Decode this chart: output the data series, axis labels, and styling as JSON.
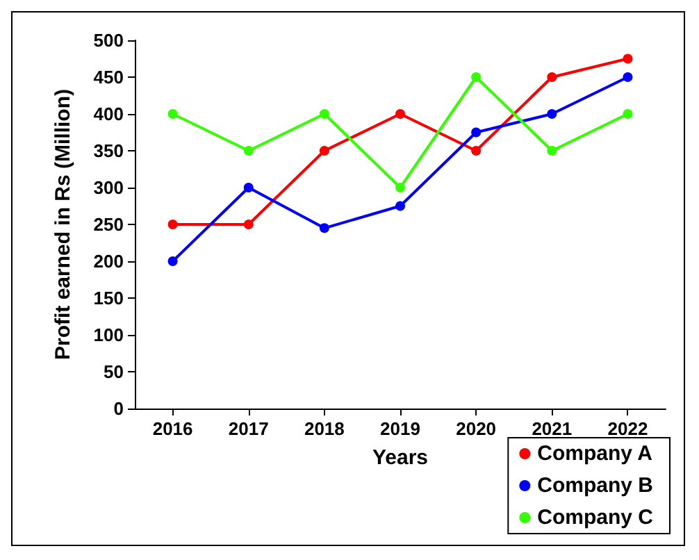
{
  "chart_data": {
    "type": "line",
    "xlabel": "Years",
    "ylabel": "Profit earned in Rs (Million)",
    "categories": [
      "2016",
      "2017",
      "2018",
      "2019",
      "2020",
      "2021",
      "2022"
    ],
    "series": [
      {
        "name": "Company A",
        "color": "#ff0000",
        "values": [
          250,
          250,
          350,
          400,
          350,
          450,
          475
        ]
      },
      {
        "name": "Company B",
        "color": "#0000ff",
        "values": [
          200,
          300,
          245,
          275,
          375,
          400,
          450
        ]
      },
      {
        "name": "Company C",
        "color": "#33ff00",
        "values": [
          400,
          350,
          400,
          300,
          450,
          350,
          400
        ]
      }
    ],
    "ylim": [
      0,
      500
    ],
    "yticks": [
      0,
      50,
      100,
      150,
      200,
      250,
      300,
      350,
      400,
      450,
      500
    ],
    "grid": false,
    "legend": "bottom right",
    "marker": "circle",
    "line_style": "solid"
  }
}
